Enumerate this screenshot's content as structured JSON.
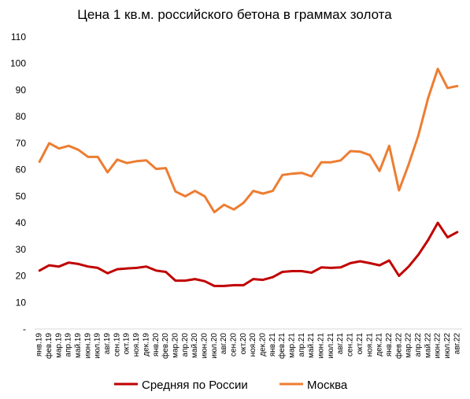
{
  "chart_data": {
    "type": "line",
    "title": "Цена 1 кв.м. российского бетона в граммах золота",
    "xlabel": "",
    "ylabel": "",
    "ylim": [
      0,
      110
    ],
    "yticks": [
      "-",
      "10",
      "20",
      "30",
      "40",
      "50",
      "60",
      "70",
      "80",
      "90",
      "100",
      "110"
    ],
    "grid": false,
    "legend_position": "bottom",
    "categories": [
      "янв.19",
      "фев.19",
      "мар.19",
      "апр.19",
      "май.19",
      "июн.19",
      "июл.19",
      "авг.19",
      "сен.19",
      "окт.19",
      "ноя.19",
      "дек.19",
      "янв.20",
      "фев.20",
      "мар.20",
      "апр.20",
      "май.20",
      "июн.20",
      "июл.20",
      "авг.20",
      "сен.20",
      "окт.20",
      "ноя.20",
      "дек.20",
      "янв.21",
      "фев.21",
      "мар.21",
      "апр.21",
      "май.21",
      "июн.21",
      "июл.21",
      "авг.21",
      "сен.21",
      "окт.21",
      "ноя.21",
      "дек.21",
      "янв.22",
      "фев.22",
      "мар.22",
      "апр.22",
      "май.22",
      "июн.22",
      "июл.22",
      "авг.22"
    ],
    "series": [
      {
        "name": "Средняя по России",
        "color": "#c00000",
        "values": [
          22,
          24,
          23.5,
          25,
          24.5,
          23.5,
          23,
          21,
          22.5,
          22.8,
          23,
          23.5,
          22,
          21.5,
          18.2,
          18.2,
          18.8,
          18,
          16.2,
          16.2,
          16.5,
          16.5,
          18.8,
          18.5,
          19.5,
          21.5,
          21.8,
          21.8,
          21.2,
          23.2,
          23,
          23.2,
          24.8,
          25.5,
          24.8,
          24,
          25.8,
          20,
          23.5,
          28,
          33.5,
          40,
          34.5,
          36.5
        ]
      },
      {
        "name": "Москва",
        "color": "#ed7d31",
        "values": [
          63,
          70,
          68,
          69,
          67.5,
          64.8,
          64.8,
          59,
          63.8,
          62.5,
          63.2,
          63.5,
          60.3,
          60.6,
          51.8,
          50,
          52,
          50,
          44,
          46.8,
          45,
          47.5,
          52,
          51,
          52,
          58,
          58.5,
          58.8,
          57.5,
          62.8,
          62.8,
          63.5,
          67,
          66.8,
          65.5,
          59.5,
          69,
          52.2,
          62,
          73,
          87,
          98,
          90.8,
          91.5
        ]
      }
    ]
  }
}
